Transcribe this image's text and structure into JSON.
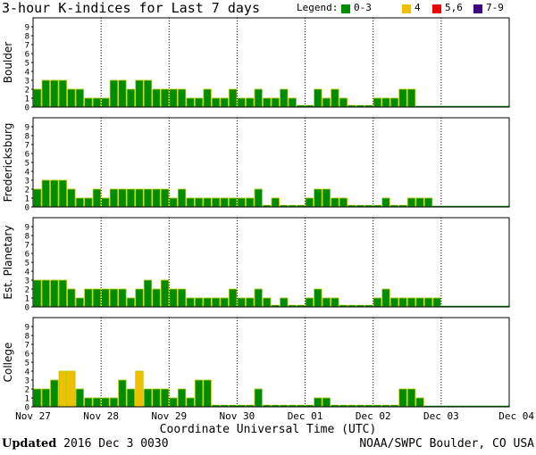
{
  "title": "3-hour K-indices for Last 7 days",
  "legend": {
    "label": "Legend:",
    "items": [
      {
        "text": "0-3",
        "color": "#008c00"
      },
      {
        "text": "4",
        "color": "#f0c000"
      },
      {
        "text": "5,6",
        "color": "#ee0000"
      },
      {
        "text": "7-9",
        "color": "#400080"
      }
    ]
  },
  "footer": {
    "updated_label": "Updated",
    "updated_value": "2016 Dec  3 0030",
    "source": "NOAA/SWPC Boulder, CO USA"
  },
  "chart_data": {
    "type": "bar",
    "xlabel": "Coordinate Universal Time (UTC)",
    "x_tick_labels": [
      "Nov 27",
      "Nov 28",
      "Nov 29",
      "Nov 30",
      "Dec 01",
      "Dec 02",
      "Dec 03",
      "Dec 04"
    ],
    "ylim": [
      0,
      9
    ],
    "y_ticks": [
      0,
      1,
      2,
      3,
      4,
      5,
      6,
      7,
      8,
      9
    ],
    "intervals_per_day": 8,
    "color_scale": {
      "0-3": "#008c00",
      "4": "#f0c000",
      "5,6": "#ee0000",
      "7-9": "#400080"
    },
    "panels": [
      {
        "name": "Boulder",
        "values": [
          2,
          3,
          3,
          3,
          2,
          2,
          1,
          1,
          1,
          3,
          3,
          2,
          3,
          3,
          2,
          2,
          2,
          2,
          1,
          1,
          2,
          1,
          1,
          2,
          1,
          1,
          2,
          1,
          1,
          2,
          1,
          0,
          0,
          2,
          1,
          2,
          1,
          0,
          0,
          0,
          1,
          1,
          1,
          2,
          2
        ]
      },
      {
        "name": "Fredericksburg",
        "values": [
          2,
          3,
          3,
          3,
          2,
          1,
          1,
          2,
          1,
          2,
          2,
          2,
          2,
          2,
          2,
          2,
          1,
          2,
          1,
          1,
          1,
          1,
          1,
          1,
          1,
          1,
          2,
          0,
          1,
          0,
          0,
          0,
          1,
          2,
          2,
          1,
          1,
          0,
          0,
          0,
          0,
          1,
          0,
          0,
          1,
          1,
          1
        ]
      },
      {
        "name": "Est. Planetary",
        "values": [
          3,
          3,
          3,
          3,
          2,
          1,
          2,
          2,
          2,
          2,
          2,
          1,
          2,
          3,
          2,
          3,
          2,
          2,
          1,
          1,
          1,
          1,
          1,
          2,
          1,
          1,
          2,
          1,
          0,
          1,
          0,
          0,
          1,
          2,
          1,
          1,
          0,
          0,
          0,
          0,
          1,
          2,
          1,
          1,
          1,
          1,
          1,
          1
        ]
      },
      {
        "name": "College",
        "values": [
          2,
          2,
          3,
          4,
          4,
          2,
          1,
          1,
          1,
          1,
          3,
          2,
          4,
          2,
          2,
          2,
          1,
          2,
          1,
          3,
          3,
          0,
          0,
          0,
          0,
          0,
          2,
          0,
          0,
          0,
          0,
          0,
          0,
          1,
          1,
          0,
          0,
          0,
          0,
          0,
          0,
          0,
          0,
          2,
          2,
          1
        ]
      }
    ]
  }
}
